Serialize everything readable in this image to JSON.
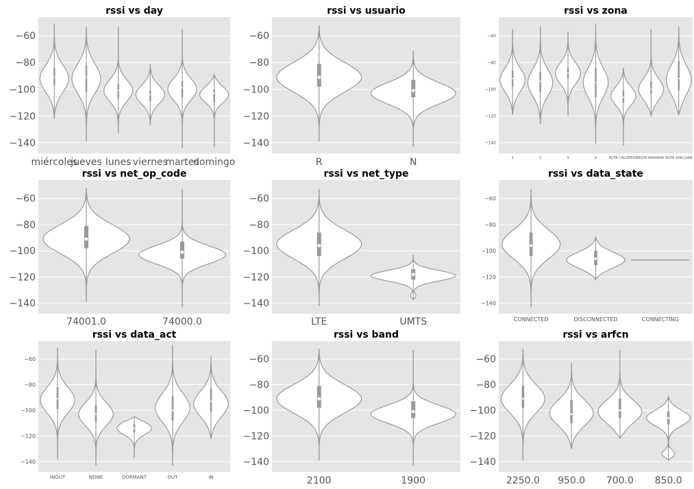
{
  "chart_data": [
    {
      "type": "violin",
      "title": "rssi vs day",
      "ylim": [
        -148,
        -46
      ],
      "yticks": [
        -140,
        -120,
        -100,
        -80,
        -60
      ],
      "grid": true,
      "categories": [
        {
          "label": "miércoles",
          "min": -122,
          "q1": -97,
          "median": -91,
          "q3": -84,
          "max": -51,
          "modes": [
            {
              "y": -92,
              "w": 1.0,
              "s": 10
            }
          ]
        },
        {
          "label": "jueves",
          "min": -139,
          "q1": -102,
          "median": -91,
          "q3": -82,
          "max": -53,
          "modes": [
            {
              "y": -92,
              "w": 1.0,
              "s": 11
            }
          ]
        },
        {
          "label": "lunes",
          "min": -133,
          "q1": -107,
          "median": -101,
          "q3": -96,
          "max": -53,
          "modes": [
            {
              "y": -101,
              "w": 1.0,
              "s": 8
            }
          ]
        },
        {
          "label": "viernes",
          "min": -127,
          "q1": -109,
          "median": -104,
          "q3": -101,
          "max": -81,
          "modes": [
            {
              "y": -104,
              "w": 1.0,
              "s": 7
            }
          ]
        },
        {
          "label": "martes",
          "min": -144,
          "q1": -106,
          "median": -99,
          "q3": -94,
          "max": -55,
          "modes": [
            {
              "y": -100,
              "w": 1.0,
              "s": 8
            }
          ]
        },
        {
          "label": "domingo",
          "min": -143,
          "q1": -110,
          "median": -103,
          "q3": -100,
          "max": -89,
          "modes": [
            {
              "y": -104,
              "w": 1.0,
              "s": 6
            }
          ]
        }
      ]
    },
    {
      "type": "violin",
      "title": "rssi vs usuario",
      "ylim": [
        -148,
        -46
      ],
      "yticks": [
        -140,
        -120,
        -100,
        -80,
        -60
      ],
      "grid": true,
      "categories": [
        {
          "label": "R",
          "min": -139,
          "q1": -98,
          "median": -91,
          "q3": -81,
          "max": -52,
          "modes": [
            {
              "y": -91,
              "w": 1.0,
              "s": 11
            }
          ]
        },
        {
          "label": "N",
          "min": -143,
          "q1": -106,
          "median": -101,
          "q3": -93,
          "max": -71,
          "modes": [
            {
              "y": -103,
              "w": 1.0,
              "s": 8
            }
          ]
        }
      ]
    },
    {
      "type": "violin",
      "title": "rssi vs zona",
      "ylim": [
        -148,
        -46
      ],
      "yticks": [
        -140,
        -120,
        -100,
        -80,
        -60
      ],
      "grid": true,
      "categories": [
        {
          "label": "1",
          "min": -119,
          "q1": -98,
          "median": -92,
          "q3": -86,
          "max": -55,
          "modes": [
            {
              "y": -93,
              "w": 1.0,
              "s": 9
            }
          ]
        },
        {
          "label": "2",
          "min": -126,
          "q1": -102,
          "median": -94,
          "q3": -87,
          "max": -53,
          "modes": [
            {
              "y": -95,
              "w": 1.0,
              "s": 10
            }
          ]
        },
        {
          "label": "3",
          "min": -120,
          "q1": -92,
          "median": -88,
          "q3": -84,
          "max": -57,
          "modes": [
            {
              "y": -88,
              "w": 1.0,
              "s": 8
            }
          ]
        },
        {
          "label": "4",
          "min": -141,
          "q1": -106,
          "median": -95,
          "q3": -84,
          "max": -51,
          "modes": [
            {
              "y": -95,
              "w": 1.0,
              "s": 11
            }
          ]
        },
        {
          "label": "RUTA CALDERON",
          "min": -142,
          "q1": -110,
          "median": -106,
          "q3": -101,
          "max": -84,
          "modes": [
            {
              "y": -105,
              "w": 1.0,
              "s": 7
            }
          ]
        },
        {
          "label": "RUTA MARIANA",
          "min": -120,
          "q1": -103,
          "median": -100,
          "q3": -94,
          "max": -55,
          "modes": [
            {
              "y": -100,
              "w": 1.0,
              "s": 8
            }
          ]
        },
        {
          "label": "RUTA SAN JUAN",
          "min": -119,
          "q1": -101,
          "median": -92,
          "q3": -79,
          "max": -53,
          "modes": [
            {
              "y": -93,
              "w": 1.0,
              "s": 11
            }
          ]
        }
      ]
    },
    {
      "type": "violin",
      "title": "rssi vs net_op_code",
      "ylim": [
        -148,
        -46
      ],
      "yticks": [
        -140,
        -120,
        -100,
        -80,
        -60
      ],
      "grid": true,
      "categories": [
        {
          "label": "74001.0",
          "min": -139,
          "q1": -98,
          "median": -91,
          "q3": -81,
          "max": -52,
          "modes": [
            {
              "y": -91,
              "w": 1.0,
              "s": 11
            }
          ]
        },
        {
          "label": "74000.0",
          "min": -143,
          "q1": -106,
          "median": -101,
          "q3": -93,
          "max": -53,
          "modes": [
            {
              "y": -103,
              "w": 1.0,
              "s": 7
            }
          ]
        }
      ]
    },
    {
      "type": "violin",
      "title": "rssi vs net_type",
      "ylim": [
        -148,
        -46
      ],
      "yticks": [
        -140,
        -120,
        -100,
        -80,
        -60
      ],
      "grid": true,
      "categories": [
        {
          "label": "LTE",
          "min": -142,
          "q1": -104,
          "median": -96,
          "q3": -86,
          "max": -53,
          "modes": [
            {
              "y": -95,
              "w": 1.0,
              "s": 11
            }
          ]
        },
        {
          "label": "UMTS",
          "min": -137,
          "q1": -122,
          "median": -118,
          "q3": -114,
          "max": -103,
          "modes": [
            {
              "y": -119,
              "w": 1.0,
              "s": 4
            },
            {
              "y": -135,
              "w": 0.08,
              "s": 2
            }
          ]
        }
      ]
    },
    {
      "type": "violin",
      "title": "rssi vs data_state",
      "ylim": [
        -148,
        -46
      ],
      "yticks": [
        -140,
        -120,
        -100,
        -80,
        -60
      ],
      "grid": true,
      "categories": [
        {
          "label": "CONNECTED",
          "min": -143,
          "q1": -104,
          "median": -96,
          "q3": -86,
          "max": -53,
          "modes": [
            {
              "y": -95,
              "w": 1.0,
              "s": 11
            }
          ]
        },
        {
          "label": "DISCONNECTED",
          "min": -122,
          "q1": -111,
          "median": -106,
          "q3": -100,
          "max": -89,
          "modes": [
            {
              "y": -107,
              "w": 1.0,
              "s": 6
            }
          ]
        },
        {
          "label": "CONNECTING",
          "min": -107,
          "q1": -107,
          "median": -107,
          "q3": -107,
          "max": -107,
          "modes": []
        }
      ]
    },
    {
      "type": "violin",
      "title": "rssi vs data_act",
      "ylim": [
        -148,
        -46
      ],
      "yticks": [
        -140,
        -120,
        -100,
        -80,
        -60
      ],
      "grid": true,
      "categories": [
        {
          "label": "INOUT",
          "min": -138,
          "q1": -99,
          "median": -91,
          "q3": -82,
          "max": -51,
          "modes": [
            {
              "y": -92,
              "w": 1.0,
              "s": 10
            }
          ]
        },
        {
          "label": "NONE",
          "min": -143,
          "q1": -109,
          "median": -103,
          "q3": -96,
          "max": -53,
          "modes": [
            {
              "y": -103,
              "w": 1.0,
              "s": 9
            }
          ]
        },
        {
          "label": "DORMANT",
          "min": -137,
          "q1": -117,
          "median": -114,
          "q3": -111,
          "max": -105,
          "modes": [
            {
              "y": -114,
              "w": 1.0,
              "s": 5
            }
          ]
        },
        {
          "label": "OUT",
          "min": -143,
          "q1": -108,
          "median": -100,
          "q3": -89,
          "max": -49,
          "modes": [
            {
              "y": -98,
              "w": 1.0,
              "s": 11
            }
          ]
        },
        {
          "label": "IN",
          "min": -122,
          "q1": -101,
          "median": -93,
          "q3": -83,
          "max": -58,
          "modes": [
            {
              "y": -95,
              "w": 1.0,
              "s": 10
            }
          ]
        }
      ]
    },
    {
      "type": "violin",
      "title": "rssi vs band",
      "ylim": [
        -148,
        -46
      ],
      "yticks": [
        -140,
        -120,
        -100,
        -80,
        -60
      ],
      "grid": true,
      "categories": [
        {
          "label": "2100",
          "min": -139,
          "q1": -98,
          "median": -91,
          "q3": -81,
          "max": -52,
          "modes": [
            {
              "y": -91,
              "w": 1.0,
              "s": 11
            }
          ]
        },
        {
          "label": "1900",
          "min": -143,
          "q1": -106,
          "median": -101,
          "q3": -93,
          "max": -53,
          "modes": [
            {
              "y": -103,
              "w": 1.0,
              "s": 7
            }
          ]
        }
      ]
    },
    {
      "type": "violin",
      "title": "rssi vs arfcn",
      "ylim": [
        -148,
        -46
      ],
      "yticks": [
        -140,
        -120,
        -100,
        -80,
        -60
      ],
      "grid": true,
      "categories": [
        {
          "label": "2250.0",
          "min": -139,
          "q1": -98,
          "median": -91,
          "q3": -81,
          "max": -52,
          "modes": [
            {
              "y": -91,
              "w": 1.0,
              "s": 11
            }
          ]
        },
        {
          "label": "950.0",
          "min": -130,
          "q1": -110,
          "median": -103,
          "q3": -92,
          "max": -63,
          "modes": [
            {
              "y": -102,
              "w": 1.0,
              "s": 10
            }
          ]
        },
        {
          "label": "700.0",
          "min": -122,
          "q1": -106,
          "median": -100,
          "q3": -91,
          "max": -53,
          "modes": [
            {
              "y": -101,
              "w": 1.0,
              "s": 9
            }
          ]
        },
        {
          "label": "850.0",
          "min": -139,
          "q1": -111,
          "median": -106,
          "q3": -101,
          "max": -89,
          "modes": [
            {
              "y": -106,
              "w": 1.0,
              "s": 6
            },
            {
              "y": -134,
              "w": 0.3,
              "s": 3
            }
          ]
        }
      ]
    }
  ]
}
